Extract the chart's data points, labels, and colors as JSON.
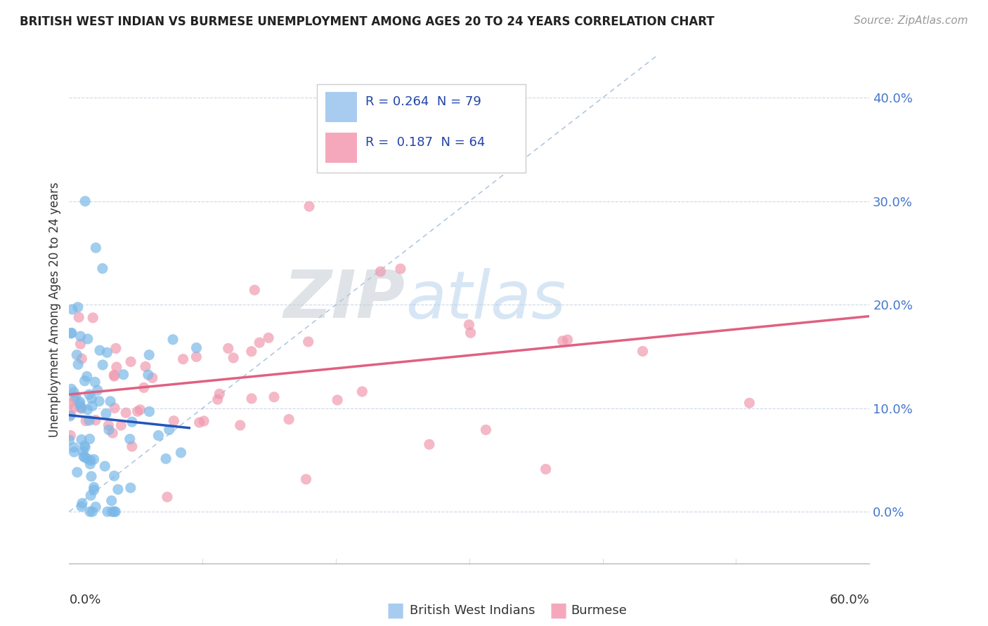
{
  "title": "BRITISH WEST INDIAN VS BURMESE UNEMPLOYMENT AMONG AGES 20 TO 24 YEARS CORRELATION CHART",
  "source": "Source: ZipAtlas.com",
  "ylabel": "Unemployment Among Ages 20 to 24 years",
  "ytick_labels": [
    "0.0%",
    "10.0%",
    "20.0%",
    "30.0%",
    "40.0%"
  ],
  "ytick_values": [
    0.0,
    0.1,
    0.2,
    0.3,
    0.4
  ],
  "xlim": [
    0.0,
    0.6
  ],
  "ylim": [
    -0.05,
    0.44
  ],
  "blue_color": "#7ab8e8",
  "pink_color": "#f09ab0",
  "blue_line_color": "#2255bb",
  "pink_line_color": "#e06080",
  "diagonal_color": "#9ab8d8",
  "watermark_zip": "ZIP",
  "watermark_atlas": "atlas",
  "blue_r": 0.264,
  "blue_n": 79,
  "pink_r": 0.187,
  "pink_n": 64,
  "legend_blue_text": "R = 0.264  N = 79",
  "legend_pink_text": "R =  0.187  N = 64",
  "legend_blue_color": "#a8ccf0",
  "legend_pink_color": "#f5a8bc",
  "bottom_label_blue": "British West Indians",
  "bottom_label_pink": "Burmese"
}
